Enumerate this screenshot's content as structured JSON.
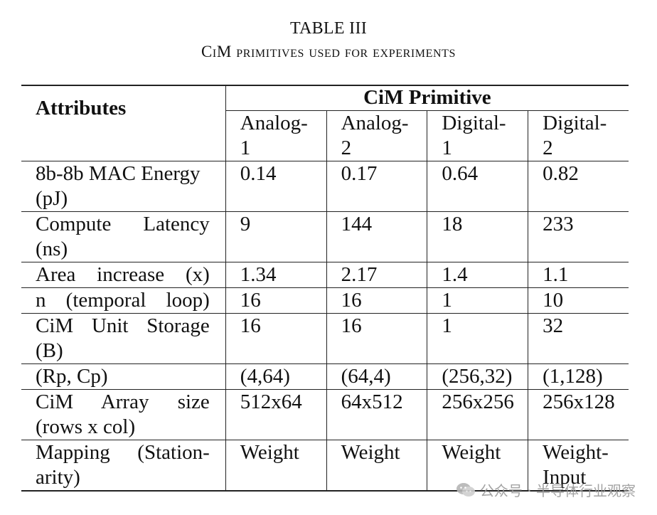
{
  "caption": {
    "label": "TABLE III",
    "title": "CiM primitives used for experiments"
  },
  "table": {
    "attr_header": "Attributes",
    "group_header": "CiM Primitive",
    "columns": [
      {
        "line1": "Analog-",
        "line2": "1"
      },
      {
        "line1": "Analog-",
        "line2": "2"
      },
      {
        "line1": "Digital-",
        "line2": "1"
      },
      {
        "line1": "Digital-",
        "line2": "2"
      }
    ],
    "rows": [
      {
        "attr_line1": "8b-8b MAC Energy",
        "attr_line2": "(pJ)",
        "values": [
          "0.14",
          "0.17",
          "0.64",
          "0.82"
        ]
      },
      {
        "attr_line1": "Compute Latency",
        "attr_line2": "(ns)",
        "values": [
          "9",
          "144",
          "18",
          "233"
        ]
      },
      {
        "attr_line1": "Area increase (x)",
        "values": [
          "1.34",
          "2.17",
          "1.4",
          "1.1"
        ]
      },
      {
        "attr_line1": "n (temporal loop)",
        "values": [
          "16",
          "16",
          "1",
          "10"
        ]
      },
      {
        "attr_line1": "CiM Unit Storage",
        "attr_line2": "(B)",
        "values": [
          "16",
          "16",
          "1",
          "32"
        ]
      },
      {
        "attr_line1": "(Rp, Cp)",
        "values": [
          "(4,64)",
          "(64,4)",
          "(256,32)",
          "(1,128)"
        ]
      },
      {
        "attr_line1": "CiM Array size",
        "attr_line2": "(rows x col)",
        "values": [
          "512x64",
          "64x512",
          "256x256",
          "256x128"
        ]
      },
      {
        "attr_line1": "Mapping (Station-",
        "attr_line2": "arity)",
        "values": [
          "Weight",
          "Weight",
          "Weight",
          "Weight-"
        ],
        "last_extra": "Input"
      }
    ]
  },
  "watermark": {
    "text": "公众号 · 半导体行业观察"
  }
}
